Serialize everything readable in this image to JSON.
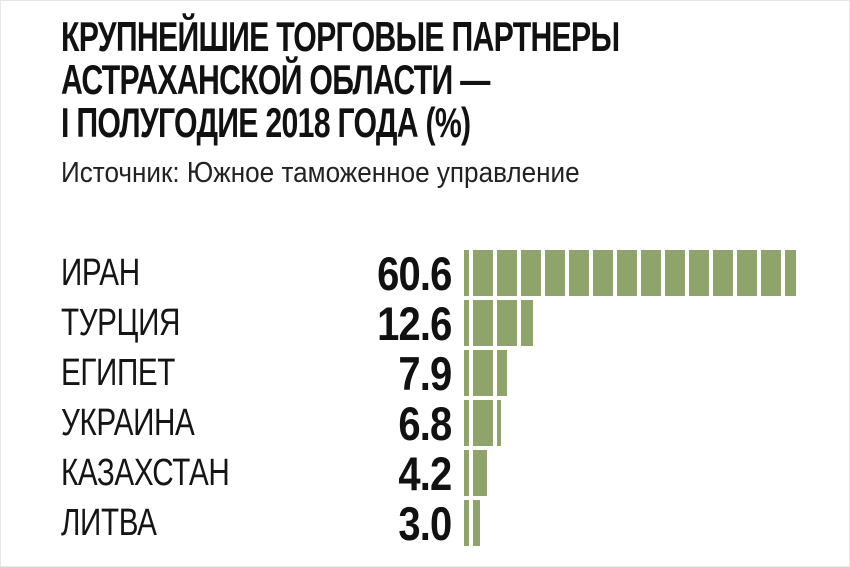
{
  "title": {
    "lines": [
      "КРУПНЕЙШИЕ ТОРГОВЫЕ ПАРТНЕРЫ",
      "АСТРАХАНСКОЙ ОБЛАСТИ —",
      "I ПОЛУГОДИЕ 2018 ГОДА (%)"
    ]
  },
  "source": "Источник: Южное таможенное управление",
  "colors": {
    "bar": "#8EA46B",
    "title_text": "#111111",
    "label_text": "#151515",
    "source_text": "#222222",
    "background": "#ffffff"
  },
  "chart_data": {
    "type": "bar",
    "orientation": "horizontal",
    "style": "segmented-blocks",
    "unit": "%",
    "title": "КРУПНЕЙШИЕ ТОРГОВЫЕ ПАРТНЕРЫ АСТРАХАНСКОЙ ОБЛАСТИ — I ПОЛУГОДИЕ 2018 ГОДА (%)",
    "source": "Источник: Южное таможенное управление",
    "categories": [
      "ИРАН",
      "ТУРЦИЯ",
      "ЕГИПЕТ",
      "УКРАИНА",
      "КАЗАХСТАН",
      "ЛИТВА"
    ],
    "values": [
      60.6,
      12.6,
      7.9,
      6.8,
      4.2,
      3.0
    ],
    "value_labels": [
      "60.6",
      "12.6",
      "7.9",
      "6.8",
      "4.2",
      "3.0"
    ],
    "xlim": [
      0,
      65
    ],
    "grid": false,
    "legend": false,
    "bar_color": "#8EA46B"
  }
}
